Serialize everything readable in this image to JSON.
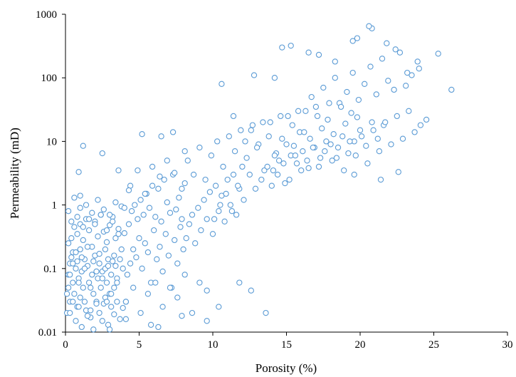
{
  "chart_data": {
    "type": "scatter",
    "title": "",
    "xlabel": "Porosity (%)",
    "ylabel": "Permeability (mD)",
    "xlim": [
      0,
      30
    ],
    "ylim": [
      0.01,
      1000
    ],
    "yscale": "log",
    "xticks": [
      0,
      5,
      10,
      15,
      20,
      25,
      30
    ],
    "yticks": [
      0.01,
      0.1,
      1,
      10,
      100,
      1000
    ],
    "xtick_labels": [
      "0",
      "5",
      "10",
      "15",
      "20",
      "25",
      "30"
    ],
    "ytick_labels": [
      "0.01",
      "0.1",
      "1",
      "10",
      "100",
      "1000"
    ],
    "grid": false,
    "legend": "none",
    "marker": "open-circle",
    "color": "#5b9bd5",
    "series": [
      {
        "x": [
          0.1,
          0.2,
          0.2,
          0.3,
          0.3,
          0.4,
          0.5,
          0.5,
          0.6,
          0.7,
          0.8,
          0.8,
          0.9,
          1.0,
          1.0,
          1.1,
          1.2,
          1.3,
          1.4,
          1.5,
          1.6,
          1.7,
          1.8,
          1.9,
          2.0,
          2.1,
          2.2,
          2.3,
          2.4,
          2.5,
          2.6,
          2.7,
          2.8,
          2.9,
          3.0,
          3.1,
          3.2,
          3.3,
          3.4,
          3.5,
          0.2,
          0.4,
          0.6,
          0.8,
          1.0,
          1.2,
          1.4,
          1.6,
          1.8,
          2.0,
          2.2,
          2.4,
          2.6,
          2.8,
          3.0,
          3.2,
          3.4,
          3.6,
          3.8,
          4.0,
          0.3,
          0.5,
          0.7,
          0.9,
          1.1,
          1.3,
          1.5,
          1.7,
          1.9,
          2.1,
          2.3,
          2.5,
          2.7,
          2.9,
          3.1,
          3.3,
          3.5,
          3.7,
          3.9,
          4.1,
          0.1,
          0.3,
          0.5,
          0.7,
          0.9,
          1.1,
          1.3,
          1.5,
          1.7,
          1.9,
          2.1,
          2.3,
          2.5,
          2.7,
          2.9,
          3.1,
          3.3,
          3.5,
          3.7,
          3.9,
          0.2,
          0.6,
          1.0,
          1.4,
          1.8,
          2.2,
          2.6,
          3.0,
          3.4,
          3.8,
          0.4,
          0.8,
          1.2,
          1.6,
          2.0,
          2.4,
          2.8,
          3.2,
          3.6,
          4.0,
          4.2,
          4.4,
          4.6,
          4.8,
          5.0,
          5.2,
          5.4,
          5.6,
          5.8,
          6.0,
          6.2,
          6.4,
          6.6,
          6.8,
          7.0,
          7.2,
          7.4,
          7.6,
          7.8,
          8.0,
          4.3,
          4.5,
          4.7,
          4.9,
          5.1,
          5.3,
          5.5,
          5.7,
          5.9,
          6.1,
          6.3,
          6.5,
          6.7,
          6.9,
          7.1,
          7.3,
          7.5,
          7.7,
          7.9,
          8.1,
          4.1,
          4.6,
          5.1,
          5.6,
          6.1,
          6.6,
          7.1,
          7.6,
          8.1,
          8.6,
          9.1,
          9.6,
          4.4,
          4.9,
          5.4,
          5.9,
          6.4,
          6.9,
          7.4,
          7.9,
          8.2,
          8.4,
          8.6,
          8.8,
          9.0,
          9.2,
          9.4,
          9.6,
          9.8,
          10.0,
          10.2,
          10.4,
          10.6,
          10.8,
          11.0,
          11.2,
          11.4,
          11.6,
          11.8,
          12.0,
          8.3,
          8.7,
          9.1,
          9.5,
          9.9,
          10.3,
          10.7,
          11.1,
          11.5,
          11.9,
          12.3,
          12.7,
          13.1,
          13.5,
          13.9,
          14.3,
          14.7,
          15.1,
          15.5,
          15.9,
          10.1,
          10.5,
          10.9,
          11.3,
          11.7,
          12.1,
          12.5,
          12.9,
          13.3,
          13.7,
          14.1,
          14.5,
          14.9,
          15.3,
          15.7,
          16.1,
          16.5,
          16.9,
          17.3,
          17.7,
          12.2,
          12.6,
          13.0,
          13.4,
          13.8,
          14.2,
          14.6,
          15.0,
          15.4,
          15.8,
          16.2,
          16.6,
          17.0,
          17.4,
          17.8,
          18.2,
          18.6,
          19.0,
          19.4,
          19.8,
          14.0,
          14.4,
          14.8,
          15.2,
          15.6,
          16.0,
          16.4,
          16.8,
          17.2,
          17.6,
          18.0,
          18.4,
          18.8,
          19.2,
          19.6,
          20.0,
          20.4,
          20.8,
          21.2,
          21.6,
          16.3,
          16.7,
          17.1,
          17.5,
          17.9,
          18.3,
          18.7,
          19.1,
          19.5,
          19.9,
          20.3,
          20.7,
          21.1,
          21.5,
          21.9,
          22.3,
          22.7,
          23.1,
          23.5,
          23.9,
          18.1,
          18.5,
          18.9,
          19.3,
          19.7,
          20.1,
          20.5,
          20.9,
          21.3,
          21.7,
          22.1,
          22.5,
          22.9,
          23.3,
          23.7,
          24.1,
          24.5,
          19.6,
          21.4,
          22.6,
          10.6,
          11.4,
          12.8,
          13.6,
          14.7,
          15.3,
          16.5,
          17.2,
          18.3,
          19.5,
          20.8,
          21.8,
          22.4,
          23.2,
          24.0,
          25.3,
          26.2,
          20.6,
          19.8,
          14.2,
          9.6,
          10.4,
          11.8,
          12.6,
          3.6,
          4.3,
          5.2,
          6.5,
          7.3,
          8.1,
          2.5,
          1.2,
          0.9,
          1.0,
          6.3,
          7.9,
          4.1,
          5.8,
          3.0,
          2.8
        ],
        "y": [
          0.02,
          0.05,
          0.08,
          0.12,
          0.03,
          0.15,
          0.06,
          0.18,
          0.04,
          0.1,
          0.025,
          0.13,
          0.07,
          0.2,
          0.035,
          0.09,
          0.05,
          0.14,
          0.022,
          0.11,
          0.06,
          0.017,
          0.08,
          0.04,
          0.16,
          0.03,
          0.07,
          0.12,
          0.05,
          0.09,
          0.028,
          0.1,
          0.06,
          0.14,
          0.04,
          0.08,
          0.13,
          0.05,
          0.11,
          0.07,
          0.25,
          0.3,
          0.45,
          0.35,
          0.5,
          0.28,
          0.6,
          0.4,
          0.22,
          0.55,
          0.32,
          0.7,
          0.38,
          0.26,
          0.48,
          0.65,
          0.3,
          0.42,
          0.2,
          0.36,
          0.08,
          0.12,
          0.18,
          0.06,
          0.15,
          0.1,
          0.22,
          0.05,
          0.13,
          0.09,
          0.17,
          0.07,
          0.2,
          0.11,
          0.04,
          0.16,
          0.06,
          0.14,
          0.1,
          0.03,
          0.04,
          0.02,
          0.03,
          0.015,
          0.025,
          0.012,
          0.03,
          0.018,
          0.022,
          0.011,
          0.028,
          0.02,
          0.015,
          0.035,
          0.013,
          0.025,
          0.019,
          0.03,
          0.016,
          0.024,
          0.8,
          1.3,
          0.9,
          1.0,
          0.75,
          1.2,
          0.85,
          0.7,
          1.1,
          0.95,
          0.55,
          0.65,
          0.45,
          0.6,
          0.5,
          0.7,
          0.4,
          0.55,
          0.35,
          0.9,
          0.08,
          0.12,
          0.2,
          0.15,
          0.3,
          0.1,
          0.25,
          0.18,
          0.06,
          0.4,
          0.14,
          0.22,
          0.09,
          0.35,
          0.16,
          0.05,
          0.28,
          0.12,
          0.45,
          0.2,
          0.5,
          0.8,
          1.0,
          0.6,
          1.2,
          0.7,
          1.5,
          0.9,
          2.0,
          0.65,
          1.8,
          0.55,
          2.5,
          1.1,
          0.75,
          3.0,
          0.85,
          1.3,
          0.6,
          2.2,
          0.03,
          0.05,
          0.02,
          0.04,
          0.06,
          0.025,
          0.05,
          0.035,
          0.08,
          0.02,
          0.06,
          0.045,
          2.0,
          3.5,
          1.5,
          4.0,
          2.8,
          5.0,
          3.2,
          1.8,
          0.3,
          0.5,
          0.7,
          0.25,
          0.9,
          0.4,
          1.2,
          0.6,
          1.6,
          0.35,
          2.0,
          0.8,
          1.4,
          0.55,
          2.5,
          1.0,
          3.0,
          0.7,
          1.8,
          4.0,
          5.0,
          3.0,
          8.0,
          2.5,
          6.0,
          10.0,
          4.0,
          12.0,
          7.0,
          15.0,
          5.5,
          18.0,
          9.0,
          3.5,
          20.0,
          6.5,
          11.0,
          25.0,
          8.5,
          14.0,
          0.6,
          1.0,
          1.5,
          0.8,
          2.0,
          1.2,
          3.0,
          1.8,
          2.5,
          4.0,
          3.5,
          5.0,
          2.2,
          6.0,
          4.5,
          7.0,
          3.8,
          8.0,
          5.5,
          10.0,
          10.0,
          15.0,
          8.0,
          20.0,
          12.0,
          6.0,
          25.0,
          9.0,
          18.0,
          30.0,
          14.0,
          11.0,
          35.0,
          16.0,
          22.0,
          13.0,
          40.0,
          19.0,
          28.0,
          24.0,
          2.0,
          3.0,
          4.5,
          2.5,
          6.0,
          3.5,
          5.0,
          8.0,
          4.0,
          7.0,
          9.0,
          5.5,
          12.0,
          6.5,
          10.0,
          15.0,
          8.5,
          20.0,
          11.0,
          18.0,
          30.0,
          50.0,
          25.0,
          70.0,
          40.0,
          100.0,
          35.0,
          60.0,
          120.0,
          45.0,
          80.0,
          150.0,
          55.0,
          200.0,
          90.0,
          65.0,
          250.0,
          75.0,
          110.0,
          180.0,
          5.0,
          8.0,
          3.5,
          10.0,
          6.0,
          12.0,
          4.5,
          15.0,
          7.0,
          20.0,
          9.0,
          25.0,
          11.0,
          30.0,
          14.0,
          18.0,
          22.0,
          3.0,
          2.5,
          3.3,
          80.0,
          25.0,
          110.0,
          0.02,
          300.0,
          320.0,
          250.0,
          230.0,
          180.0,
          380.0,
          600.0,
          350.0,
          280.0,
          120.0,
          140.0,
          240.0,
          65.0,
          650.0,
          420.0,
          100.0,
          0.015,
          0.025,
          0.06,
          0.045,
          3.5,
          1.7,
          13.0,
          12.0,
          14.0,
          7.0,
          6.5,
          8.5,
          3.3,
          1.4,
          0.012,
          0.018,
          0.016,
          0.013,
          0.011,
          0.03
        ]
      }
    ]
  }
}
